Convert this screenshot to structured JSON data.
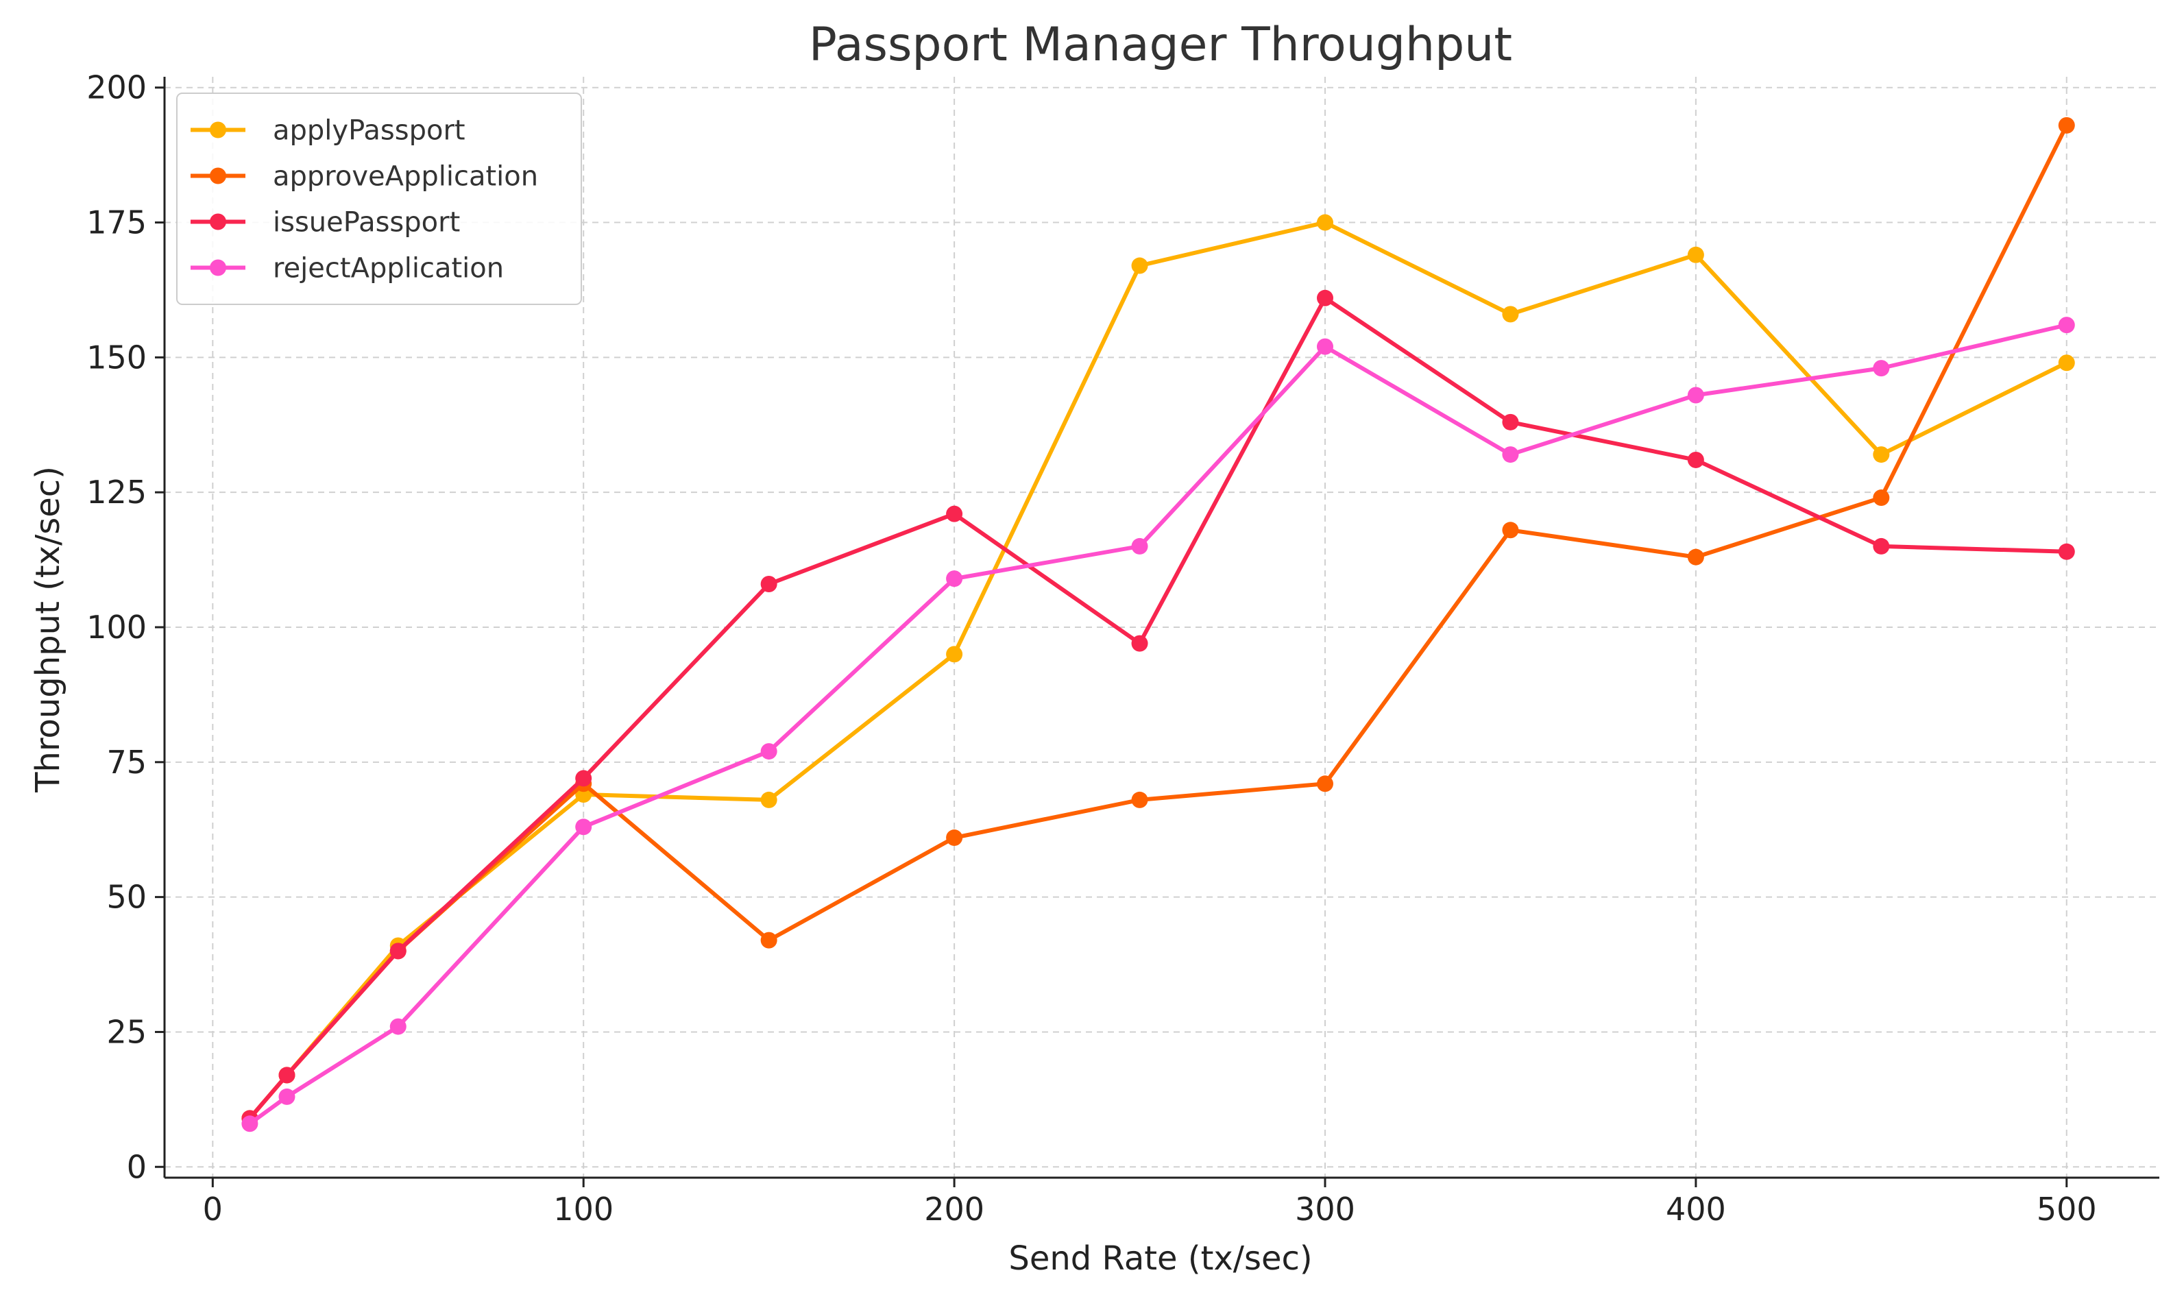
{
  "chart_data": {
    "type": "line",
    "title": "Passport Manager Throughput",
    "xlabel": "Send Rate (tx/sec)",
    "ylabel": "Throughput (tx/sec)",
    "xlim": [
      -13,
      525
    ],
    "ylim": [
      -2,
      202
    ],
    "x_ticks": [
      0,
      100,
      200,
      300,
      400,
      500
    ],
    "y_ticks": [
      0,
      25,
      50,
      75,
      100,
      125,
      150,
      175,
      200
    ],
    "grid": true,
    "legend_position": "top-left",
    "x": [
      10,
      20,
      50,
      100,
      150,
      200,
      250,
      300,
      350,
      400,
      450,
      500
    ],
    "series": [
      {
        "name": "applyPassport",
        "color": "#FFB000",
        "values": [
          9,
          17,
          41,
          69,
          68,
          95,
          167,
          175,
          158,
          169,
          132,
          149
        ]
      },
      {
        "name": "approveApplication",
        "color": "#FE6100",
        "values": [
          9,
          17,
          40,
          71,
          42,
          61,
          68,
          71,
          118,
          113,
          124,
          193
        ]
      },
      {
        "name": "issuePassport",
        "color": "#F8254F",
        "values": [
          9,
          17,
          40,
          72,
          108,
          121,
          97,
          161,
          138,
          131,
          115,
          114
        ]
      },
      {
        "name": "rejectApplication",
        "color": "#FF4FCC",
        "values": [
          8,
          13,
          26,
          63,
          77,
          109,
          115,
          152,
          132,
          143,
          148,
          156
        ]
      }
    ]
  }
}
